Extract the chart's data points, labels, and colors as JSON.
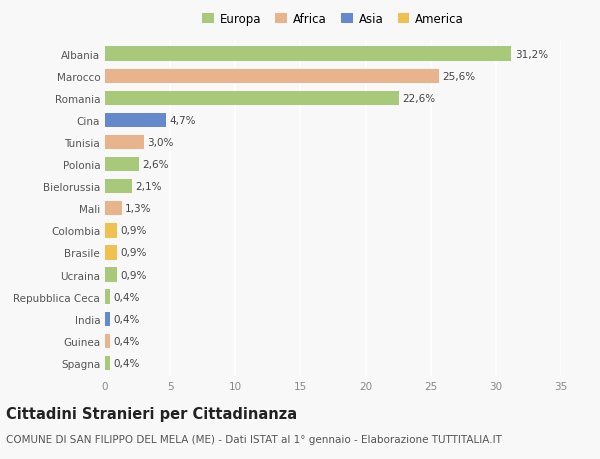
{
  "countries": [
    "Albania",
    "Marocco",
    "Romania",
    "Cina",
    "Tunisia",
    "Polonia",
    "Bielorussia",
    "Mali",
    "Colombia",
    "Brasile",
    "Ucraina",
    "Repubblica Ceca",
    "India",
    "Guinea",
    "Spagna"
  ],
  "values": [
    31.2,
    25.6,
    22.6,
    4.7,
    3.0,
    2.6,
    2.1,
    1.3,
    0.9,
    0.9,
    0.9,
    0.4,
    0.4,
    0.4,
    0.4
  ],
  "labels": [
    "31,2%",
    "25,6%",
    "22,6%",
    "4,7%",
    "3,0%",
    "2,6%",
    "2,1%",
    "1,3%",
    "0,9%",
    "0,9%",
    "0,9%",
    "0,4%",
    "0,4%",
    "0,4%",
    "0,4%"
  ],
  "continents": [
    "Europa",
    "Africa",
    "Europa",
    "Asia",
    "Africa",
    "Europa",
    "Europa",
    "Africa",
    "America",
    "America",
    "Europa",
    "Europa",
    "Asia",
    "Africa",
    "Europa"
  ],
  "colors": {
    "Europa": "#a8c87a",
    "Africa": "#e8b48c",
    "Asia": "#6688cc",
    "America": "#f0c050"
  },
  "legend_order": [
    "Europa",
    "Africa",
    "Asia",
    "America"
  ],
  "xlim": [
    0,
    35
  ],
  "xticks": [
    0,
    5,
    10,
    15,
    20,
    25,
    30,
    35
  ],
  "background_color": "#f8f8f8",
  "grid_color": "#ffffff",
  "title": "Cittadini Stranieri per Cittadinanza",
  "subtitle": "COMUNE DI SAN FILIPPO DEL MELA (ME) - Dati ISTAT al 1° gennaio - Elaborazione TUTTITALIA.IT",
  "bar_height": 0.65,
  "title_fontsize": 10.5,
  "subtitle_fontsize": 7.5,
  "label_fontsize": 7.5,
  "tick_fontsize": 7.5,
  "legend_fontsize": 8.5
}
